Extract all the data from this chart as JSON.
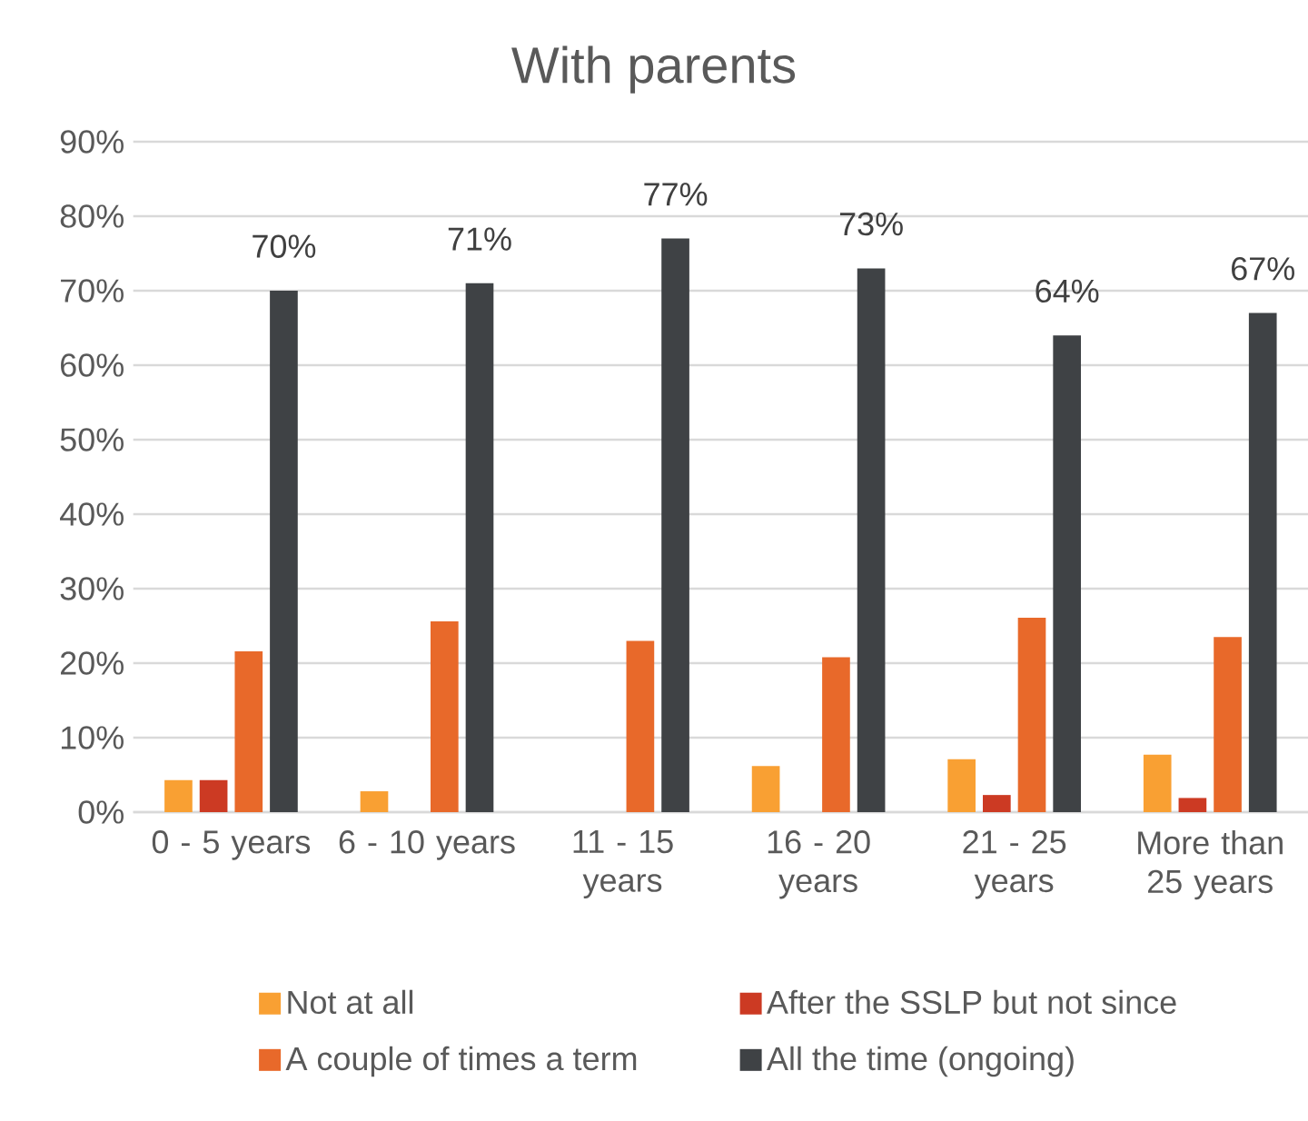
{
  "chart_data": {
    "type": "bar",
    "title": "With parents",
    "categories": [
      "0 - 5 years",
      "6 - 10 years",
      "11 - 15 years",
      "16 - 20 years",
      "21 - 25 years",
      "More than 25 years"
    ],
    "series": [
      {
        "name": "Not at all",
        "color": "#f9a033",
        "values": [
          4.3,
          2.8,
          0,
          6.2,
          7.1,
          7.7
        ]
      },
      {
        "name": "After the SSLP but not since",
        "color": "#cc3a23",
        "values": [
          4.3,
          0,
          0,
          0,
          2.3,
          1.9
        ]
      },
      {
        "name": "A couple of times a term",
        "color": "#e8692a",
        "values": [
          21.6,
          25.6,
          23.0,
          20.8,
          26.1,
          23.5
        ]
      },
      {
        "name": "All the time (ongoing)",
        "color": "#3f4245",
        "values": [
          70,
          71,
          77,
          73,
          64,
          67
        ],
        "value_labels": [
          "70%",
          "71%",
          "77%",
          "73%",
          "64%",
          "67%"
        ]
      }
    ],
    "ylim": [
      0,
      90
    ],
    "yticks": [
      {
        "value": 0,
        "label": "0%"
      },
      {
        "value": 10,
        "label": "10%"
      },
      {
        "value": 20,
        "label": "20%"
      },
      {
        "value": 30,
        "label": "30%"
      },
      {
        "value": 40,
        "label": "40%"
      },
      {
        "value": 50,
        "label": "50%"
      },
      {
        "value": 60,
        "label": "60%"
      },
      {
        "value": 70,
        "label": "70%"
      },
      {
        "value": 80,
        "label": "80%"
      },
      {
        "value": 90,
        "label": "90%"
      }
    ],
    "grid": "y",
    "legend": "bottom"
  }
}
